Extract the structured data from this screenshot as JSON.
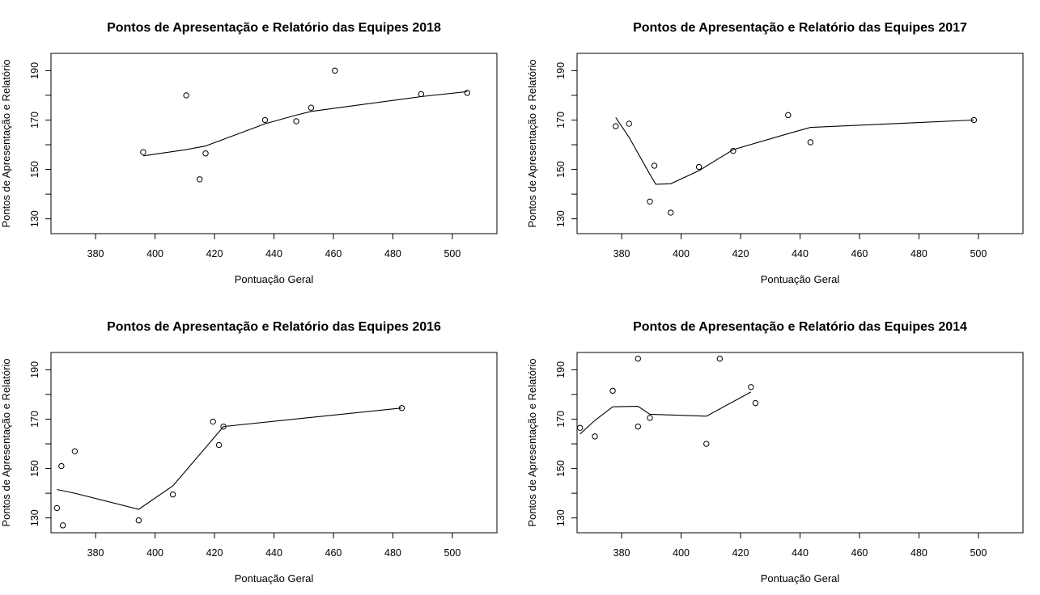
{
  "chart_data": [
    {
      "type": "scatter",
      "title": "Pontos de Apresentação e Relatório das Equipes 2018",
      "xlabel": "Pontuação Geral",
      "ylabel": "Pontos de Apresentação e Relatório",
      "xlim": [
        365,
        515
      ],
      "ylim": [
        124,
        197
      ],
      "xticks": [
        380,
        400,
        420,
        440,
        460,
        480,
        500
      ],
      "yticks": [
        130,
        150,
        170,
        190
      ],
      "points": [
        {
          "x": 396.0,
          "y": 157.0
        },
        {
          "x": 410.5,
          "y": 180.0
        },
        {
          "x": 415.0,
          "y": 146.0
        },
        {
          "x": 417.0,
          "y": 156.5
        },
        {
          "x": 437.0,
          "y": 170.0
        },
        {
          "x": 447.5,
          "y": 169.5
        },
        {
          "x": 452.5,
          "y": 175.0
        },
        {
          "x": 460.5,
          "y": 190.0
        },
        {
          "x": 489.5,
          "y": 180.5
        },
        {
          "x": 505.0,
          "y": 181.0
        }
      ],
      "smooth": [
        {
          "x": 396.0,
          "y": 155.5
        },
        {
          "x": 410.5,
          "y": 158.0
        },
        {
          "x": 417.0,
          "y": 159.5
        },
        {
          "x": 437.0,
          "y": 168.5
        },
        {
          "x": 447.5,
          "y": 172.0
        },
        {
          "x": 452.5,
          "y": 173.5
        },
        {
          "x": 489.5,
          "y": 179.5
        },
        {
          "x": 505.0,
          "y": 181.5
        }
      ]
    },
    {
      "type": "scatter",
      "title": "Pontos de Apresentação e Relatório das Equipes 2017",
      "xlabel": "Pontuação Geral",
      "ylabel": "Pontos de Apresentação e Relatório",
      "xlim": [
        365,
        515
      ],
      "ylim": [
        124,
        197
      ],
      "xticks": [
        380,
        400,
        420,
        440,
        460,
        480,
        500
      ],
      "yticks": [
        130,
        150,
        170,
        190
      ],
      "points": [
        {
          "x": 378.0,
          "y": 167.5
        },
        {
          "x": 382.5,
          "y": 168.5
        },
        {
          "x": 389.5,
          "y": 137.0
        },
        {
          "x": 391.0,
          "y": 151.5
        },
        {
          "x": 396.5,
          "y": 132.5
        },
        {
          "x": 406.0,
          "y": 151.0
        },
        {
          "x": 417.5,
          "y": 157.5
        },
        {
          "x": 436.0,
          "y": 172.0
        },
        {
          "x": 443.5,
          "y": 161.0
        },
        {
          "x": 498.5,
          "y": 170.0
        }
      ],
      "smooth": [
        {
          "x": 378.0,
          "y": 171.0
        },
        {
          "x": 382.5,
          "y": 163.0
        },
        {
          "x": 389.5,
          "y": 148.0
        },
        {
          "x": 391.5,
          "y": 144.0
        },
        {
          "x": 396.5,
          "y": 144.2
        },
        {
          "x": 406.0,
          "y": 149.5
        },
        {
          "x": 417.5,
          "y": 158.0
        },
        {
          "x": 436.0,
          "y": 164.5
        },
        {
          "x": 443.5,
          "y": 167.0
        },
        {
          "x": 498.5,
          "y": 170.0
        }
      ]
    },
    {
      "type": "scatter",
      "title": "Pontos de Apresentação e Relatório das Equipes 2016",
      "xlabel": "Pontuação Geral",
      "ylabel": "Pontos de Apresentação e Relatório",
      "xlim": [
        365,
        515
      ],
      "ylim": [
        124,
        197
      ],
      "xticks": [
        380,
        400,
        420,
        440,
        460,
        480,
        500
      ],
      "yticks": [
        130,
        150,
        170,
        190
      ],
      "points": [
        {
          "x": 367.0,
          "y": 134.0
        },
        {
          "x": 368.5,
          "y": 151.0
        },
        {
          "x": 369.0,
          "y": 127.0
        },
        {
          "x": 373.0,
          "y": 157.0
        },
        {
          "x": 394.5,
          "y": 129.0
        },
        {
          "x": 406.0,
          "y": 139.5
        },
        {
          "x": 419.5,
          "y": 169.0
        },
        {
          "x": 421.5,
          "y": 159.5
        },
        {
          "x": 423.0,
          "y": 167.0
        },
        {
          "x": 483.0,
          "y": 174.5
        }
      ],
      "smooth": [
        {
          "x": 367.0,
          "y": 141.5
        },
        {
          "x": 373.0,
          "y": 140.0
        },
        {
          "x": 394.5,
          "y": 133.5
        },
        {
          "x": 406.0,
          "y": 143.0
        },
        {
          "x": 419.5,
          "y": 162.0
        },
        {
          "x": 423.0,
          "y": 167.0
        },
        {
          "x": 483.0,
          "y": 174.5
        }
      ]
    },
    {
      "type": "scatter",
      "title": "Pontos de Apresentação e Relatório das Equipes 2014",
      "xlabel": "Pontuação Geral",
      "ylabel": "Pontos de Apresentação e Relatório",
      "xlim": [
        365,
        515
      ],
      "ylim": [
        124,
        197
      ],
      "xticks": [
        380,
        400,
        420,
        440,
        460,
        480,
        500
      ],
      "yticks": [
        130,
        150,
        170,
        190
      ],
      "points": [
        {
          "x": 366.0,
          "y": 166.5
        },
        {
          "x": 371.0,
          "y": 163.0
        },
        {
          "x": 377.0,
          "y": 181.5
        },
        {
          "x": 385.5,
          "y": 194.5
        },
        {
          "x": 385.5,
          "y": 167.0
        },
        {
          "x": 389.5,
          "y": 170.5
        },
        {
          "x": 408.5,
          "y": 160.0
        },
        {
          "x": 413.0,
          "y": 194.5
        },
        {
          "x": 423.5,
          "y": 183.0
        },
        {
          "x": 425.0,
          "y": 176.5
        }
      ],
      "smooth": [
        {
          "x": 366.0,
          "y": 164.0
        },
        {
          "x": 371.0,
          "y": 169.5
        },
        {
          "x": 377.0,
          "y": 175.0
        },
        {
          "x": 385.5,
          "y": 175.2
        },
        {
          "x": 389.5,
          "y": 172.0
        },
        {
          "x": 408.5,
          "y": 171.2
        },
        {
          "x": 423.5,
          "y": 181.0
        }
      ]
    }
  ]
}
